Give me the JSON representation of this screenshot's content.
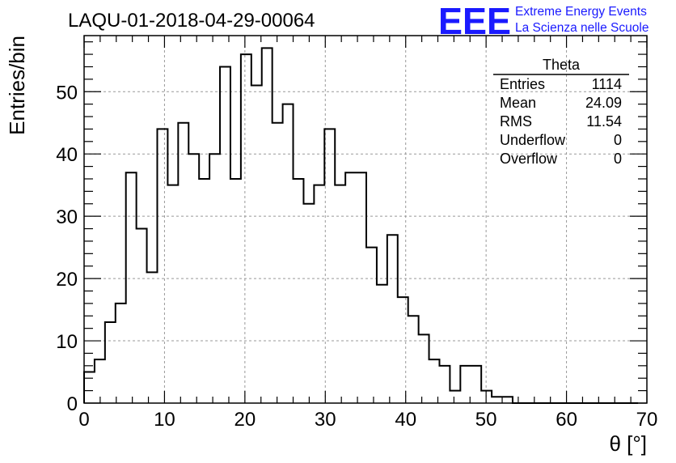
{
  "chart_data": {
    "type": "bar",
    "title": "LAQU-01-2018-04-29-00064",
    "xlabel": "θ [°]",
    "ylabel": "Entries/bin",
    "xlim": [
      0,
      70
    ],
    "ylim": [
      0,
      59
    ],
    "bin_width": 1.3,
    "grid": true,
    "x_ticks": [
      0,
      10,
      20,
      30,
      40,
      50,
      60,
      70
    ],
    "y_ticks": [
      0,
      10,
      20,
      30,
      40,
      50
    ],
    "x_tick_labels": [
      "0",
      "10",
      "20",
      "30",
      "40",
      "50",
      "60",
      "70"
    ],
    "y_tick_labels": [
      "0",
      "10",
      "20",
      "30",
      "40",
      "50"
    ],
    "values": [
      5,
      7,
      13,
      16,
      37,
      28,
      21,
      44,
      35,
      45,
      40,
      36,
      40,
      54,
      36,
      56,
      51,
      57,
      45,
      48,
      36,
      32,
      35,
      44,
      35,
      37,
      37,
      25,
      19,
      27,
      17,
      14,
      11,
      7,
      6,
      2,
      6,
      6,
      2,
      1,
      1,
      0,
      0,
      0,
      0,
      0,
      0,
      0,
      0,
      0,
      0,
      0,
      0
    ],
    "stats": {
      "title": "Theta",
      "rows": [
        {
          "label": "Entries",
          "value": "1114"
        },
        {
          "label": "Mean",
          "value": "24.09"
        },
        {
          "label": "RMS",
          "value": "11.54"
        },
        {
          "label": "Underflow",
          "value": "0"
        },
        {
          "label": "Overflow",
          "value": "0"
        }
      ]
    }
  },
  "logo": {
    "mark": "EEE",
    "line1": "Extreme Energy Events",
    "line2": "La Scienza nelle Scuole",
    "color": "#1a1aff"
  }
}
